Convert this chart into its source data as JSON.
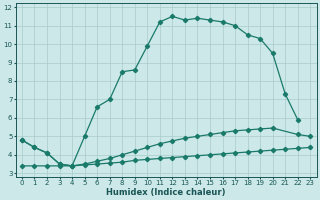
{
  "xlabel": "Humidex (Indice chaleur)",
  "bg_color": "#cce8e8",
  "line_color": "#1a7a6a",
  "xlim": [
    -0.5,
    23.5
  ],
  "ylim": [
    2.8,
    12.2
  ],
  "xticks": [
    0,
    1,
    2,
    3,
    4,
    5,
    6,
    7,
    8,
    9,
    10,
    11,
    12,
    13,
    14,
    15,
    16,
    17,
    18,
    19,
    20,
    21,
    22,
    23
  ],
  "yticks": [
    3,
    4,
    5,
    6,
    7,
    8,
    9,
    10,
    11,
    12
  ],
  "grid_color": "#aacccc",
  "marker": "D",
  "markersize": 2.2,
  "line_width": 0.9,
  "line1_x": [
    0,
    1,
    2,
    3,
    4,
    5,
    6,
    7,
    8,
    9,
    10,
    11,
    12,
    13,
    14,
    15,
    16,
    17,
    18,
    19,
    20,
    21,
    22
  ],
  "line1_y": [
    4.8,
    4.4,
    4.1,
    3.5,
    3.4,
    5.0,
    6.6,
    7.0,
    8.5,
    8.6,
    9.9,
    11.2,
    11.5,
    11.3,
    11.4,
    11.3,
    11.2,
    11.0,
    10.5,
    10.3,
    9.5,
    7.3,
    5.9
  ],
  "line2_x": [
    0,
    1,
    2,
    3,
    4,
    5,
    6,
    7,
    8,
    9,
    10,
    11,
    12,
    13,
    14,
    15,
    16,
    17,
    18,
    19,
    20,
    22,
    23
  ],
  "line2_y": [
    4.8,
    4.4,
    4.1,
    3.5,
    3.4,
    3.5,
    3.65,
    3.8,
    4.0,
    4.2,
    4.4,
    4.6,
    4.75,
    4.9,
    5.0,
    5.1,
    5.2,
    5.3,
    5.35,
    5.4,
    5.45,
    5.1,
    5.0
  ],
  "line3_x": [
    0,
    1,
    2,
    3,
    4,
    5,
    6,
    7,
    8,
    9,
    10,
    11,
    12,
    13,
    14,
    15,
    16,
    17,
    18,
    19,
    20,
    21,
    22,
    23
  ],
  "line3_y": [
    3.4,
    3.4,
    3.4,
    3.4,
    3.4,
    3.45,
    3.5,
    3.55,
    3.6,
    3.7,
    3.75,
    3.8,
    3.85,
    3.9,
    3.95,
    4.0,
    4.05,
    4.1,
    4.15,
    4.2,
    4.25,
    4.3,
    4.35,
    4.4
  ]
}
